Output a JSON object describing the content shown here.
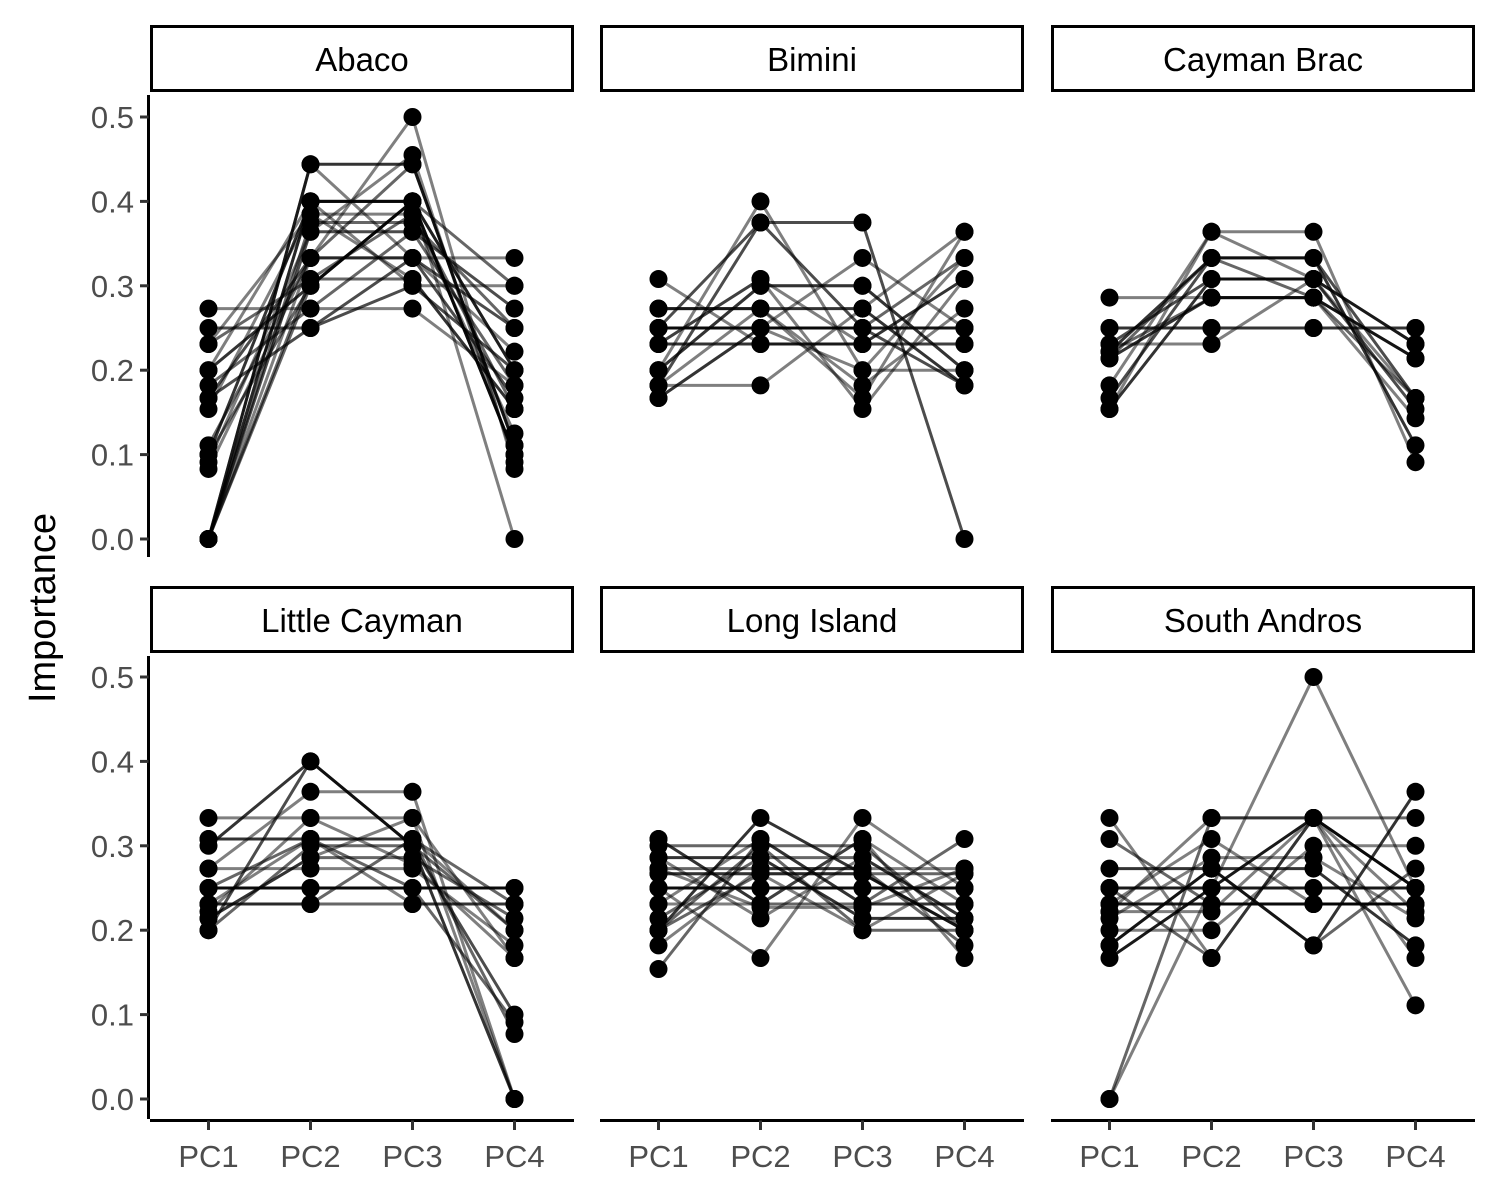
{
  "chart_data": {
    "type": "line",
    "facet_layout": "2x3",
    "ylabel": "Importance",
    "xlabel": "",
    "ylim": [
      0,
      0.5
    ],
    "yticks": [
      0.0,
      0.1,
      0.2,
      0.3,
      0.4,
      0.5
    ],
    "ytick_labels": [
      "0.0",
      "0.1",
      "0.2",
      "0.3",
      "0.4",
      "0.5"
    ],
    "categories": [
      "PC1",
      "PC2",
      "PC3",
      "PC4"
    ],
    "grid": false,
    "legend": "none",
    "colors": {
      "point": "#000000",
      "line": "#000000",
      "strip_fill": "#ffffff"
    },
    "panels": [
      {
        "name": "Abaco",
        "series": [
          {
            "values": [
              0.273,
              0.273,
              0.273,
              0.182
            ],
            "opacity": 0.5
          },
          {
            "values": [
              0.25,
              0.25,
              0.3,
              0.2
            ],
            "opacity": 0.7
          },
          {
            "values": [
              0.231,
              0.308,
              0.308,
              0.154
            ],
            "opacity": 0.6
          },
          {
            "values": [
              0.2,
              0.3,
              0.4,
              0.1
            ],
            "opacity": 0.8
          },
          {
            "values": [
              0.182,
              0.273,
              0.364,
              0.182
            ],
            "opacity": 0.6
          },
          {
            "values": [
              0.167,
              0.333,
              0.333,
              0.167
            ],
            "opacity": 0.7
          },
          {
            "values": [
              0.154,
              0.385,
              0.308,
              0.154
            ],
            "opacity": 0.5
          },
          {
            "values": [
              0.111,
              0.333,
              0.444,
              0.111
            ],
            "opacity": 0.6
          },
          {
            "values": [
              0.1,
              0.4,
              0.4,
              0.1
            ],
            "opacity": 0.8
          },
          {
            "values": [
              0.091,
              0.364,
              0.455,
              0.091
            ],
            "opacity": 0.5
          },
          {
            "values": [
              0.083,
              0.333,
              0.5,
              0.083
            ],
            "opacity": 0.5
          },
          {
            "values": [
              0,
              0.444,
              0.444,
              0.111
            ],
            "opacity": 0.8
          },
          {
            "values": [
              0,
              0.4,
              0.4,
              0.2
            ],
            "opacity": 0.7
          },
          {
            "values": [
              0,
              0.375,
              0.375,
              0.25
            ],
            "opacity": 0.6
          },
          {
            "values": [
              0,
              0.364,
              0.364,
              0.273
            ],
            "opacity": 0.7
          },
          {
            "values": [
              0,
              0.333,
              0.333,
              0.333
            ],
            "opacity": 0.5
          },
          {
            "values": [
              0,
              0.3,
              0.4,
              0.3
            ],
            "opacity": 0.6
          },
          {
            "values": [
              0,
              0.444,
              0.333,
              0.222
            ],
            "opacity": 0.5
          },
          {
            "values": [
              0,
              0.4,
              0.3,
              0.3
            ],
            "opacity": 0.5
          },
          {
            "values": [
              0.167,
              0.25,
              0.333,
              0.25
            ],
            "opacity": 0.7
          },
          {
            "values": [
              0.2,
              0.4,
              0.4,
              0.0
            ],
            "opacity": 0.5
          },
          {
            "values": [
              0.1,
              0.3,
              0.4,
              0.2
            ],
            "opacity": 0.6
          },
          {
            "values": [
              0,
              0.308,
              0.385,
              0.154
            ],
            "opacity": 0.6
          },
          {
            "values": [
              0.231,
              0.385,
              0.385,
              0.125
            ],
            "opacity": 0.5
          }
        ]
      },
      {
        "name": "Bimini",
        "series": [
          {
            "values": [
              0.308,
              0.231,
              0.231,
              0.231
            ],
            "opacity": 0.5
          },
          {
            "values": [
              0.273,
              0.273,
              0.273,
              0.182
            ],
            "opacity": 0.8
          },
          {
            "values": [
              0.25,
              0.25,
              0.25,
              0.25
            ],
            "opacity": 0.8
          },
          {
            "values": [
              0.231,
              0.231,
              0.231,
              0.308
            ],
            "opacity": 0.8
          },
          {
            "values": [
              0.2,
              0.4,
              0.2,
              0.2
            ],
            "opacity": 0.5
          },
          {
            "values": [
              0.182,
              0.182,
              0.273,
              0.364
            ],
            "opacity": 0.5
          },
          {
            "values": [
              0.167,
              0.25,
              0.25,
              0.333
            ],
            "opacity": 0.6
          },
          {
            "values": [
              0.25,
              0.375,
              0.375,
              0.0
            ],
            "opacity": 0.7
          },
          {
            "values": [
              0.2,
              0.3,
              0.3,
              0.2
            ],
            "opacity": 0.5
          },
          {
            "values": [
              0.182,
              0.273,
              0.167,
              0.364
            ],
            "opacity": 0.5
          },
          {
            "values": [
              0.231,
              0.308,
              0.231,
              0.231
            ],
            "opacity": 0.5
          },
          {
            "values": [
              0.167,
              0.25,
              0.333,
              0.25
            ],
            "opacity": 0.5
          },
          {
            "values": [
              0.25,
              0.25,
              0.25,
              0.25
            ],
            "opacity": 0.6
          },
          {
            "values": [
              0.2,
              0.3,
              0.3,
              0.2
            ],
            "opacity": 0.6
          },
          {
            "values": [
              0.273,
              0.273,
              0.182,
              0.273
            ],
            "opacity": 0.5
          },
          {
            "values": [
              0.182,
              0.375,
              0.25,
              0.182
            ],
            "opacity": 0.7
          },
          {
            "values": [
              0.231,
              0.308,
              0.154,
              0.308
            ],
            "opacity": 0.5
          },
          {
            "values": [
              0.25,
              0.25,
              0.2,
              0.333
            ],
            "opacity": 0.5
          }
        ]
      },
      {
        "name": "Cayman Brac",
        "series": [
          {
            "values": [
              0.286,
              0.286,
              0.286,
              0.143
            ],
            "opacity": 0.5
          },
          {
            "values": [
              0.25,
              0.25,
              0.25,
              0.25
            ],
            "opacity": 0.6
          },
          {
            "values": [
              0.231,
              0.231,
              0.308,
              0.231
            ],
            "opacity": 0.5
          },
          {
            "values": [
              0.222,
              0.333,
              0.333,
              0.111
            ],
            "opacity": 0.8
          },
          {
            "values": [
              0.214,
              0.286,
              0.286,
              0.214
            ],
            "opacity": 0.8
          },
          {
            "values": [
              0.182,
              0.364,
              0.364,
              0.091
            ],
            "opacity": 0.5
          },
          {
            "values": [
              0.167,
              0.333,
              0.333,
              0.167
            ],
            "opacity": 0.7
          },
          {
            "values": [
              0.154,
              0.308,
              0.308,
              0.231
            ],
            "opacity": 0.8
          },
          {
            "values": [
              0.231,
              0.308,
              0.308,
              0.154
            ],
            "opacity": 0.7
          },
          {
            "values": [
              0.25,
              0.25,
              0.25,
              0.25
            ],
            "opacity": 0.5
          },
          {
            "values": [
              0.222,
              0.286,
              0.286,
              0.214
            ],
            "opacity": 0.6
          },
          {
            "values": [
              0.214,
              0.333,
              0.286,
              0.167
            ],
            "opacity": 0.6
          },
          {
            "values": [
              0.154,
              0.364,
              0.308,
              0.167
            ],
            "opacity": 0.5
          }
        ]
      },
      {
        "name": "Little Cayman",
        "series": [
          {
            "values": [
              0.333,
              0.333,
              0.333,
              0.0
            ],
            "opacity": 0.5
          },
          {
            "values": [
              0.308,
              0.308,
              0.308,
              0.077
            ],
            "opacity": 0.6
          },
          {
            "values": [
              0.3,
              0.4,
              0.3,
              0.0
            ],
            "opacity": 0.8
          },
          {
            "values": [
              0.273,
              0.364,
              0.364,
              0.0
            ],
            "opacity": 0.5
          },
          {
            "values": [
              0.25,
              0.25,
              0.25,
              0.25
            ],
            "opacity": 0.9
          },
          {
            "values": [
              0.231,
              0.231,
              0.231,
              0.231
            ],
            "opacity": 0.6
          },
          {
            "values": [
              0.214,
              0.286,
              0.286,
              0.214
            ],
            "opacity": 0.6
          },
          {
            "values": [
              0.2,
              0.3,
              0.3,
              0.2
            ],
            "opacity": 0.6
          },
          {
            "values": [
              0.2,
              0.4,
              0.3,
              0.1
            ],
            "opacity": 0.7
          },
          {
            "values": [
              0.222,
              0.333,
              0.278,
              0.167
            ],
            "opacity": 0.5
          },
          {
            "values": [
              0.25,
              0.25,
              0.25,
              0.25
            ],
            "opacity": 0.6
          },
          {
            "values": [
              0.231,
              0.308,
              0.231,
              0.231
            ],
            "opacity": 0.5
          },
          {
            "values": [
              0.273,
              0.273,
              0.273,
              0.182
            ],
            "opacity": 0.5
          },
          {
            "values": [
              0.25,
              0.308,
              0.25,
              0.091
            ],
            "opacity": 0.6
          },
          {
            "values": [
              0.214,
              0.286,
              0.333,
              0.167
            ],
            "opacity": 0.5
          },
          {
            "values": [
              0.231,
              0.231,
              0.308,
              0.231
            ],
            "opacity": 0.6
          },
          {
            "values": [
              0.308,
              0.308,
              0.308,
              0.2
            ],
            "opacity": 0.5
          }
        ]
      },
      {
        "name": "Long Island",
        "series": [
          {
            "values": [
              0.308,
              0.231,
              0.231,
              0.231
            ],
            "opacity": 0.6
          },
          {
            "values": [
              0.3,
              0.3,
              0.2,
              0.2
            ],
            "opacity": 0.6
          },
          {
            "values": [
              0.286,
              0.286,
              0.214,
              0.214
            ],
            "opacity": 0.8
          },
          {
            "values": [
              0.273,
              0.273,
              0.273,
              0.182
            ],
            "opacity": 0.6
          },
          {
            "values": [
              0.25,
              0.25,
              0.25,
              0.25
            ],
            "opacity": 0.9
          },
          {
            "values": [
              0.231,
              0.231,
              0.308,
              0.231
            ],
            "opacity": 0.5
          },
          {
            "values": [
              0.214,
              0.286,
              0.286,
              0.214
            ],
            "opacity": 0.6
          },
          {
            "values": [
              0.2,
              0.3,
              0.3,
              0.2
            ],
            "opacity": 0.6
          },
          {
            "values": [
              0.182,
              0.273,
              0.273,
              0.273
            ],
            "opacity": 0.5
          },
          {
            "values": [
              0.154,
              0.308,
              0.231,
              0.308
            ],
            "opacity": 0.6
          },
          {
            "values": [
              0.2,
              0.333,
              0.267,
              0.2
            ],
            "opacity": 0.8
          },
          {
            "values": [
              0.267,
              0.267,
              0.267,
              0.2
            ],
            "opacity": 0.6
          },
          {
            "values": [
              0.25,
              0.167,
              0.333,
              0.25
            ],
            "opacity": 0.5
          },
          {
            "values": [
              0.231,
              0.308,
              0.231,
              0.231
            ],
            "opacity": 0.5
          },
          {
            "values": [
              0.286,
              0.214,
              0.286,
              0.214
            ],
            "opacity": 0.5
          },
          {
            "values": [
              0.267,
              0.267,
              0.2,
              0.267
            ],
            "opacity": 0.5
          },
          {
            "values": [
              0.25,
              0.25,
              0.25,
              0.25
            ],
            "opacity": 0.5
          },
          {
            "values": [
              0.2,
              0.267,
              0.267,
              0.267
            ],
            "opacity": 0.6
          },
          {
            "values": [
              0.273,
              0.227,
              0.227,
              0.273
            ],
            "opacity": 0.5
          },
          {
            "values": [
              0.308,
              0.231,
              0.308,
              0.167
            ],
            "opacity": 0.5
          }
        ]
      },
      {
        "name": "South Andros",
        "series": [
          {
            "values": [
              0.333,
              0.167,
              0.333,
              0.167
            ],
            "opacity": 0.5
          },
          {
            "values": [
              0.308,
              0.231,
              0.231,
              0.231
            ],
            "opacity": 0.6
          },
          {
            "values": [
              0.273,
              0.273,
              0.273,
              0.182
            ],
            "opacity": 0.8
          },
          {
            "values": [
              0.25,
              0.25,
              0.25,
              0.25
            ],
            "opacity": 0.8
          },
          {
            "values": [
              0.231,
              0.231,
              0.231,
              0.231
            ],
            "opacity": 0.9
          },
          {
            "values": [
              0.222,
              0.333,
              0.333,
              0.111
            ],
            "opacity": 0.5
          },
          {
            "values": [
              0.214,
              0.286,
              0.286,
              0.214
            ],
            "opacity": 0.5
          },
          {
            "values": [
              0.182,
              0.273,
              0.182,
              0.364
            ],
            "opacity": 0.8
          },
          {
            "values": [
              0.167,
              0.25,
              0.333,
              0.25
            ],
            "opacity": 0.9
          },
          {
            "values": [
              0,
              0.25,
              0.5,
              0.25
            ],
            "opacity": 0.5
          },
          {
            "values": [
              0,
              0.333,
              0.333,
              0.333
            ],
            "opacity": 0.6
          },
          {
            "values": [
              0.25,
              0.25,
              0.25,
              0.25
            ],
            "opacity": 0.5
          },
          {
            "values": [
              0.2,
              0.2,
              0.3,
              0.3
            ],
            "opacity": 0.5
          },
          {
            "values": [
              0.25,
              0.167,
              0.333,
              0.25
            ],
            "opacity": 0.6
          },
          {
            "values": [
              0.231,
              0.308,
              0.231,
              0.231
            ],
            "opacity": 0.5
          },
          {
            "values": [
              0.222,
              0.222,
              0.333,
              0.222
            ],
            "opacity": 0.5
          },
          {
            "values": [
              0.182,
              0.273,
              0.182,
              0.273
            ],
            "opacity": 0.6
          }
        ]
      }
    ]
  }
}
